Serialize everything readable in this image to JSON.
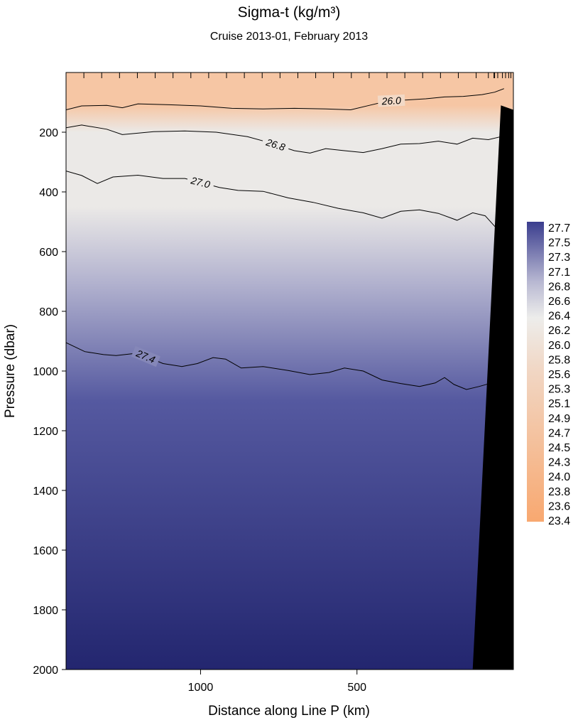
{
  "chart_data": {
    "type": "heatmap",
    "title": "Sigma-t  (kg/m³)",
    "subtitle": "Cruise 2013-01,  February 2013",
    "xlabel": "Distance along Line P  (km)",
    "ylabel": "Pressure  (dbar)",
    "x_reversed": true,
    "xlim": [
      1430,
      0
    ],
    "ylim": [
      2000,
      0
    ],
    "x_ticks": [
      1000,
      500
    ],
    "y_ticks": [
      200,
      400,
      600,
      800,
      1000,
      1200,
      1400,
      1600,
      1800,
      2000
    ],
    "colorbar": {
      "labels": [
        "27.7",
        "27.5",
        "27.3",
        "27.1",
        "26.8",
        "26.6",
        "26.4",
        "26.2",
        "26.0",
        "25.8",
        "25.6",
        "25.3",
        "25.1",
        "24.9",
        "24.7",
        "24.5",
        "24.3",
        "24.0",
        "23.8",
        "23.6",
        "23.4"
      ],
      "high_color": "#3a3d8e",
      "mid_color": "#ededeb",
      "low_color": "#f8a870"
    },
    "field_colors": {
      "surface": "#f6c6a4",
      "upper": "#ebe9e7",
      "mid": "#b3b3cf",
      "deep": "#5559a0",
      "bottom": "#23266f"
    },
    "contours": [
      {
        "level": "26.0",
        "label": "26.0",
        "label_x": 390,
        "points": [
          [
            1430,
            125
          ],
          [
            1380,
            112
          ],
          [
            1300,
            110
          ],
          [
            1250,
            118
          ],
          [
            1200,
            105
          ],
          [
            1100,
            108
          ],
          [
            1000,
            112
          ],
          [
            900,
            120
          ],
          [
            800,
            122
          ],
          [
            700,
            120
          ],
          [
            600,
            122
          ],
          [
            520,
            125
          ],
          [
            460,
            110
          ],
          [
            400,
            95
          ],
          [
            340,
            92
          ],
          [
            280,
            88
          ],
          [
            220,
            82
          ],
          [
            160,
            80
          ],
          [
            100,
            74
          ],
          [
            60,
            66
          ],
          [
            30,
            54
          ]
        ]
      },
      {
        "level": "26.8",
        "label": "26.8",
        "label_x": 760,
        "points": [
          [
            1430,
            185
          ],
          [
            1380,
            176
          ],
          [
            1300,
            190
          ],
          [
            1250,
            208
          ],
          [
            1150,
            198
          ],
          [
            1050,
            196
          ],
          [
            950,
            200
          ],
          [
            850,
            215
          ],
          [
            780,
            235
          ],
          [
            700,
            262
          ],
          [
            650,
            270
          ],
          [
            600,
            255
          ],
          [
            540,
            262
          ],
          [
            480,
            268
          ],
          [
            420,
            255
          ],
          [
            360,
            240
          ],
          [
            300,
            238
          ],
          [
            240,
            230
          ],
          [
            180,
            240
          ],
          [
            130,
            220
          ],
          [
            80,
            225
          ],
          [
            40,
            215
          ]
        ]
      },
      {
        "level": "27.0",
        "label": "27.0",
        "label_x": 1000,
        "points": [
          [
            1430,
            330
          ],
          [
            1380,
            345
          ],
          [
            1330,
            372
          ],
          [
            1280,
            350
          ],
          [
            1200,
            344
          ],
          [
            1120,
            355
          ],
          [
            1050,
            355
          ],
          [
            1000,
            368
          ],
          [
            940,
            385
          ],
          [
            880,
            395
          ],
          [
            800,
            398
          ],
          [
            720,
            420
          ],
          [
            640,
            435
          ],
          [
            560,
            455
          ],
          [
            480,
            470
          ],
          [
            420,
            488
          ],
          [
            360,
            465
          ],
          [
            300,
            460
          ],
          [
            240,
            472
          ],
          [
            180,
            495
          ],
          [
            130,
            470
          ],
          [
            90,
            480
          ],
          [
            60,
            515
          ],
          [
            40,
            535
          ]
        ]
      },
      {
        "level": "27.4",
        "label": "27.4",
        "label_x": 1175,
        "points": [
          [
            1430,
            905
          ],
          [
            1370,
            935
          ],
          [
            1310,
            945
          ],
          [
            1270,
            948
          ],
          [
            1200,
            940
          ],
          [
            1120,
            975
          ],
          [
            1060,
            985
          ],
          [
            1010,
            975
          ],
          [
            960,
            955
          ],
          [
            920,
            960
          ],
          [
            870,
            990
          ],
          [
            800,
            985
          ],
          [
            720,
            998
          ],
          [
            650,
            1012
          ],
          [
            590,
            1005
          ],
          [
            540,
            990
          ],
          [
            480,
            1000
          ],
          [
            420,
            1030
          ],
          [
            360,
            1042
          ],
          [
            300,
            1052
          ],
          [
            250,
            1040
          ],
          [
            220,
            1022
          ],
          [
            190,
            1045
          ],
          [
            150,
            1062
          ],
          [
            110,
            1052
          ],
          [
            70,
            1040
          ]
        ]
      }
    ],
    "bathymetry": [
      [
        130,
        2000
      ],
      [
        40,
        110
      ],
      [
        0,
        125
      ],
      [
        0,
        2000
      ]
    ]
  }
}
